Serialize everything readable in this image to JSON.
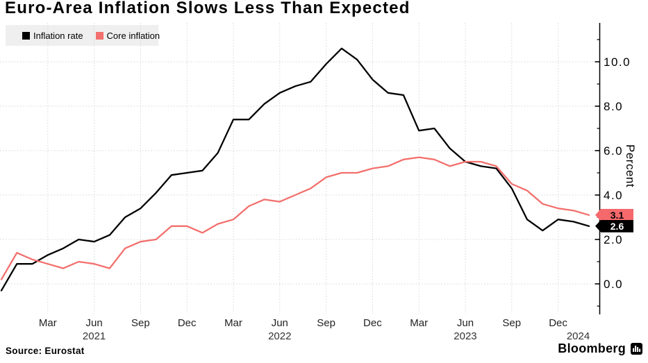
{
  "title": "Euro-Area Inflation Slows Less Than Expected",
  "legend": [
    {
      "label": "Inflation rate",
      "color": "#000000"
    },
    {
      "label": "Core inflation",
      "color": "#f2706d"
    }
  ],
  "y_axis": {
    "label": "Percent"
  },
  "end_labels": [
    {
      "series": "core-inflation",
      "value": "3.1",
      "bg": "#f5696c",
      "fg": "#000000"
    },
    {
      "series": "inflation-rate",
      "value": "2.6",
      "bg": "#000000",
      "fg": "#ffffff"
    }
  ],
  "source": "Source: Eurostat",
  "brand": "Bloomberg",
  "chart_data": {
    "type": "line",
    "x": [
      "Dec 2020",
      "Jan 2021",
      "Feb 2021",
      "Mar 2021",
      "Apr 2021",
      "May 2021",
      "Jun 2021",
      "Jul 2021",
      "Aug 2021",
      "Sep 2021",
      "Oct 2021",
      "Nov 2021",
      "Dec 2021",
      "Jan 2022",
      "Feb 2022",
      "Mar 2022",
      "Apr 2022",
      "May 2022",
      "Jun 2022",
      "Jul 2022",
      "Aug 2022",
      "Sep 2022",
      "Oct 2022",
      "Nov 2022",
      "Dec 2022",
      "Jan 2023",
      "Feb 2023",
      "Mar 2023",
      "Apr 2023",
      "May 2023",
      "Jun 2023",
      "Jul 2023",
      "Aug 2023",
      "Sep 2023",
      "Oct 2023",
      "Nov 2023",
      "Dec 2023",
      "Jan 2024",
      "Feb 2024"
    ],
    "series": [
      {
        "name": "Inflation rate",
        "color": "#000000",
        "values": [
          -0.3,
          0.9,
          0.9,
          1.3,
          1.6,
          2.0,
          1.9,
          2.2,
          3.0,
          3.4,
          4.1,
          4.9,
          5.0,
          5.1,
          5.9,
          7.4,
          7.4,
          8.1,
          8.6,
          8.9,
          9.1,
          9.9,
          10.6,
          10.1,
          9.2,
          8.6,
          8.5,
          6.9,
          7.0,
          6.1,
          5.5,
          5.3,
          5.2,
          4.3,
          2.9,
          2.4,
          2.9,
          2.8,
          2.6
        ]
      },
      {
        "name": "Core inflation",
        "color": "#f2706d",
        "values": [
          0.2,
          1.4,
          1.1,
          0.9,
          0.7,
          1.0,
          0.9,
          0.7,
          1.6,
          1.9,
          2.0,
          2.6,
          2.6,
          2.3,
          2.7,
          2.9,
          3.5,
          3.8,
          3.7,
          4.0,
          4.3,
          4.8,
          5.0,
          5.0,
          5.2,
          5.3,
          5.6,
          5.7,
          5.6,
          5.3,
          5.5,
          5.5,
          5.3,
          4.5,
          4.2,
          3.6,
          3.4,
          3.3,
          3.1
        ]
      }
    ],
    "ylim": [
      -1.5,
      11.7
    ],
    "grid": true,
    "legend_position": "top-left",
    "y_ticks": [
      {
        "value": 0,
        "label": "0.0"
      },
      {
        "value": 2,
        "label": "2.0"
      },
      {
        "value": 4,
        "label": "4.0"
      },
      {
        "value": 6,
        "label": "6.0"
      },
      {
        "value": 8,
        "label": "8.0"
      },
      {
        "value": 10,
        "label": "10.0"
      }
    ],
    "x_ticks": [
      {
        "i": 3,
        "label": "Mar"
      },
      {
        "i": 6,
        "label": "Jun"
      },
      {
        "i": 9,
        "label": "Sep"
      },
      {
        "i": 12,
        "label": "Dec"
      },
      {
        "i": 15,
        "label": "Mar"
      },
      {
        "i": 18,
        "label": "Jun"
      },
      {
        "i": 21,
        "label": "Sep"
      },
      {
        "i": 24,
        "label": "Dec"
      },
      {
        "i": 27,
        "label": "Mar"
      },
      {
        "i": 30,
        "label": "Jun"
      },
      {
        "i": 33,
        "label": "Sep"
      },
      {
        "i": 36,
        "label": "Dec"
      }
    ],
    "year_labels": [
      {
        "i": 6,
        "label": "2021"
      },
      {
        "i": 18,
        "label": "2022"
      },
      {
        "i": 30,
        "label": "2023"
      },
      {
        "i": 37.3,
        "label": "2024"
      }
    ]
  }
}
